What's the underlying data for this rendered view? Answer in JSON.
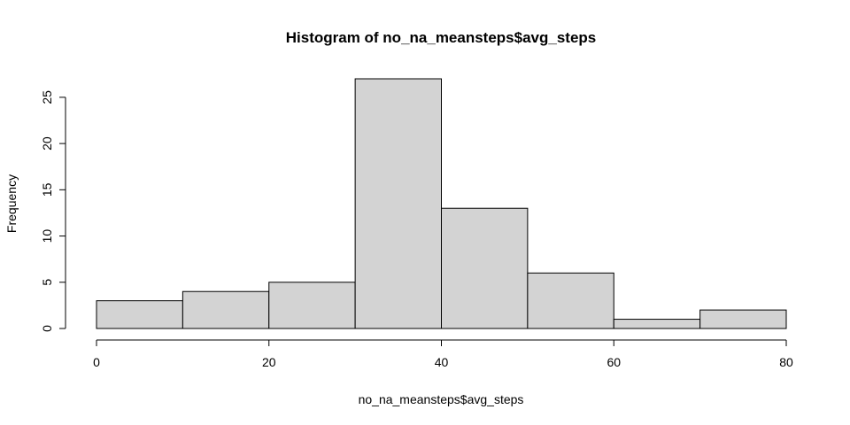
{
  "chart_data": {
    "type": "bar",
    "title": "Histogram of no_na_meansteps$avg_steps",
    "xlabel": "no_na_meansteps$avg_steps",
    "ylabel": "Frequency",
    "bins": [
      {
        "x0": 0,
        "x1": 10,
        "count": 3
      },
      {
        "x0": 10,
        "x1": 20,
        "count": 4
      },
      {
        "x0": 20,
        "x1": 30,
        "count": 5
      },
      {
        "x0": 30,
        "x1": 40,
        "count": 27
      },
      {
        "x0": 40,
        "x1": 50,
        "count": 13
      },
      {
        "x0": 50,
        "x1": 60,
        "count": 6
      },
      {
        "x0": 60,
        "x1": 70,
        "count": 1
      },
      {
        "x0": 70,
        "x1": 80,
        "count": 2
      }
    ],
    "xlim": [
      0,
      80
    ],
    "ylim": [
      0,
      27
    ],
    "x_ticks": [
      0,
      20,
      40,
      60,
      80
    ],
    "y_ticks": [
      0,
      5,
      10,
      15,
      20,
      25
    ],
    "grid": false,
    "colors": {
      "bar_fill": "#d3d3d3",
      "bar_stroke": "#000000"
    }
  }
}
